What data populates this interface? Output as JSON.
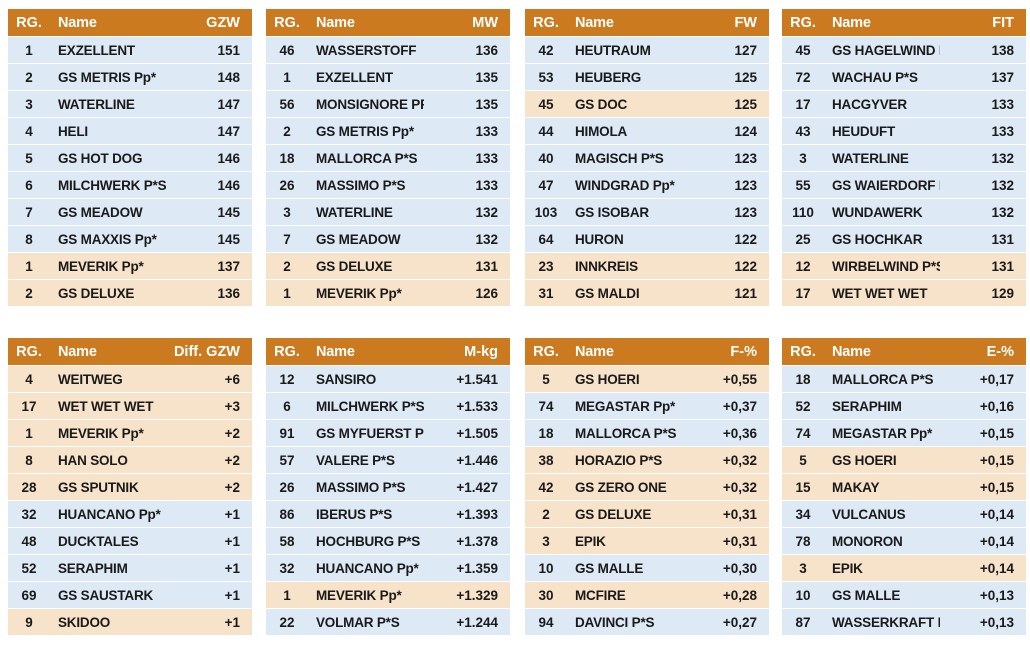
{
  "tables": [
    {
      "headers": {
        "rg": "RG.",
        "name": "Name",
        "value": "GZW"
      },
      "rows": [
        {
          "rg": "1",
          "name": "EXZELLENT",
          "value": "151",
          "tone": "blue"
        },
        {
          "rg": "2",
          "name": "GS METRIS Pp*",
          "value": "148",
          "tone": "blue"
        },
        {
          "rg": "3",
          "name": "WATERLINE",
          "value": "147",
          "tone": "blue"
        },
        {
          "rg": "4",
          "name": "HELI",
          "value": "147",
          "tone": "blue"
        },
        {
          "rg": "5",
          "name": "GS HOT DOG",
          "value": "146",
          "tone": "blue"
        },
        {
          "rg": "6",
          "name": "MILCHWERK P*S",
          "value": "146",
          "tone": "blue"
        },
        {
          "rg": "7",
          "name": "GS MEADOW",
          "value": "145",
          "tone": "blue"
        },
        {
          "rg": "8",
          "name": "GS MAXXIS Pp*",
          "value": "145",
          "tone": "blue"
        },
        {
          "rg": "1",
          "name": "MEVERIK Pp*",
          "value": "137",
          "tone": "tan"
        },
        {
          "rg": "2",
          "name": "GS DELUXE",
          "value": "136",
          "tone": "tan"
        }
      ]
    },
    {
      "headers": {
        "rg": "RG.",
        "name": "Name",
        "value": "MW"
      },
      "rows": [
        {
          "rg": "46",
          "name": "WASSERSTOFF",
          "value": "136",
          "tone": "blue"
        },
        {
          "rg": "1",
          "name": "EXZELLENT",
          "value": "135",
          "tone": "blue"
        },
        {
          "rg": "56",
          "name": "MONSIGNORE PP*",
          "value": "135",
          "tone": "blue"
        },
        {
          "rg": "2",
          "name": "GS METRIS Pp*",
          "value": "133",
          "tone": "blue"
        },
        {
          "rg": "18",
          "name": "MALLORCA P*S",
          "value": "133",
          "tone": "blue"
        },
        {
          "rg": "26",
          "name": "MASSIMO P*S",
          "value": "133",
          "tone": "blue"
        },
        {
          "rg": "3",
          "name": "WATERLINE",
          "value": "132",
          "tone": "blue"
        },
        {
          "rg": "7",
          "name": "GS MEADOW",
          "value": "132",
          "tone": "blue"
        },
        {
          "rg": "2",
          "name": "GS DELUXE",
          "value": "131",
          "tone": "tan"
        },
        {
          "rg": "1",
          "name": "MEVERIK Pp*",
          "value": "126",
          "tone": "tan"
        }
      ]
    },
    {
      "headers": {
        "rg": "RG.",
        "name": "Name",
        "value": "FW"
      },
      "rows": [
        {
          "rg": "42",
          "name": "HEUTRAUM",
          "value": "127",
          "tone": "blue"
        },
        {
          "rg": "53",
          "name": "HEUBERG",
          "value": "125",
          "tone": "blue"
        },
        {
          "rg": "45",
          "name": "GS DOC",
          "value": "125",
          "tone": "tan"
        },
        {
          "rg": "44",
          "name": "HIMOLA",
          "value": "124",
          "tone": "blue"
        },
        {
          "rg": "40",
          "name": "MAGISCH P*S",
          "value": "123",
          "tone": "blue"
        },
        {
          "rg": "47",
          "name": "WINDGRAD Pp*",
          "value": "123",
          "tone": "blue"
        },
        {
          "rg": "103",
          "name": "GS ISOBAR",
          "value": "123",
          "tone": "blue"
        },
        {
          "rg": "64",
          "name": "HURON",
          "value": "122",
          "tone": "blue"
        },
        {
          "rg": "23",
          "name": "INNKREIS",
          "value": "122",
          "tone": "tan"
        },
        {
          "rg": "31",
          "name": "GS MALDI",
          "value": "121",
          "tone": "tan"
        }
      ]
    },
    {
      "headers": {
        "rg": "RG.",
        "name": "Name",
        "value": "FIT"
      },
      "rows": [
        {
          "rg": "45",
          "name": "GS HAGELWIND Pp*",
          "value": "138",
          "tone": "blue"
        },
        {
          "rg": "72",
          "name": "WACHAU P*S",
          "value": "137",
          "tone": "blue"
        },
        {
          "rg": "17",
          "name": "HACGYVER",
          "value": "133",
          "tone": "blue"
        },
        {
          "rg": "43",
          "name": "HEUDUFT",
          "value": "133",
          "tone": "blue"
        },
        {
          "rg": "3",
          "name": "WATERLINE",
          "value": "132",
          "tone": "blue"
        },
        {
          "rg": "55",
          "name": "GS WAIERDORF Pp*",
          "value": "132",
          "tone": "blue"
        },
        {
          "rg": "110",
          "name": "WUNDAWERK",
          "value": "132",
          "tone": "blue"
        },
        {
          "rg": "25",
          "name": "GS HOCHKAR",
          "value": "131",
          "tone": "blue"
        },
        {
          "rg": "12",
          "name": "WIRBELWIND P*S",
          "value": "131",
          "tone": "tan"
        },
        {
          "rg": "17",
          "name": "WET WET WET",
          "value": "129",
          "tone": "tan"
        }
      ]
    },
    {
      "headers": {
        "rg": "RG.",
        "name": "Name",
        "value": "Diff. GZW"
      },
      "rows": [
        {
          "rg": "4",
          "name": "WEITWEG",
          "value": "+6",
          "tone": "tan"
        },
        {
          "rg": "17",
          "name": "WET WET WET",
          "value": "+3",
          "tone": "tan"
        },
        {
          "rg": "1",
          "name": "MEVERIK Pp*",
          "value": "+2",
          "tone": "tan"
        },
        {
          "rg": "8",
          "name": "HAN SOLO",
          "value": "+2",
          "tone": "tan"
        },
        {
          "rg": "28",
          "name": "GS SPUTNIK",
          "value": "+2",
          "tone": "tan"
        },
        {
          "rg": "32",
          "name": "HUANCANO Pp*",
          "value": "+1",
          "tone": "blue"
        },
        {
          "rg": "48",
          "name": "DUCKTALES",
          "value": "+1",
          "tone": "blue"
        },
        {
          "rg": "52",
          "name": "SERAPHIM",
          "value": "+1",
          "tone": "blue"
        },
        {
          "rg": "69",
          "name": "GS SAUSTARK",
          "value": "+1",
          "tone": "blue"
        },
        {
          "rg": "9",
          "name": "SKIDOO",
          "value": "+1",
          "tone": "tan"
        }
      ]
    },
    {
      "headers": {
        "rg": "RG.",
        "name": "Name",
        "value": "M-kg"
      },
      "rows": [
        {
          "rg": "12",
          "name": "SANSIRO",
          "value": "+1.541",
          "tone": "blue"
        },
        {
          "rg": "6",
          "name": "MILCHWERK P*S",
          "value": "+1.533",
          "tone": "blue"
        },
        {
          "rg": "91",
          "name": "GS MYFUERST PP*",
          "value": "+1.505",
          "tone": "blue"
        },
        {
          "rg": "57",
          "name": "VALERE P*S",
          "value": "+1.446",
          "tone": "blue"
        },
        {
          "rg": "26",
          "name": "MASSIMO P*S",
          "value": "+1.427",
          "tone": "blue"
        },
        {
          "rg": "86",
          "name": "IBERUS P*S",
          "value": "+1.393",
          "tone": "blue"
        },
        {
          "rg": "58",
          "name": "HOCHBURG P*S",
          "value": "+1.378",
          "tone": "blue"
        },
        {
          "rg": "32",
          "name": "HUANCANO Pp*",
          "value": "+1.359",
          "tone": "blue"
        },
        {
          "rg": "1",
          "name": "MEVERIK Pp*",
          "value": "+1.329",
          "tone": "tan"
        },
        {
          "rg": "22",
          "name": "VOLMAR P*S",
          "value": "+1.244",
          "tone": "blue"
        }
      ]
    },
    {
      "headers": {
        "rg": "RG.",
        "name": "Name",
        "value": "F-%"
      },
      "rows": [
        {
          "rg": "5",
          "name": "GS HOERI",
          "value": "+0,55",
          "tone": "tan"
        },
        {
          "rg": "74",
          "name": "MEGASTAR Pp*",
          "value": "+0,37",
          "tone": "blue"
        },
        {
          "rg": "18",
          "name": "MALLORCA P*S",
          "value": "+0,36",
          "tone": "blue"
        },
        {
          "rg": "38",
          "name": "HORAZIO P*S",
          "value": "+0,32",
          "tone": "tan"
        },
        {
          "rg": "42",
          "name": "GS ZERO ONE",
          "value": "+0,32",
          "tone": "tan"
        },
        {
          "rg": "2",
          "name": "GS DELUXE",
          "value": "+0,31",
          "tone": "tan"
        },
        {
          "rg": "3",
          "name": "EPIK",
          "value": "+0,31",
          "tone": "tan"
        },
        {
          "rg": "10",
          "name": "GS MALLE",
          "value": "+0,30",
          "tone": "blue"
        },
        {
          "rg": "30",
          "name": "MCFIRE",
          "value": "+0,28",
          "tone": "tan"
        },
        {
          "rg": "94",
          "name": "DAVINCI P*S",
          "value": "+0,27",
          "tone": "blue"
        }
      ]
    },
    {
      "headers": {
        "rg": "RG.",
        "name": "Name",
        "value": "E-%"
      },
      "rows": [
        {
          "rg": "18",
          "name": "MALLORCA P*S",
          "value": "+0,17",
          "tone": "blue"
        },
        {
          "rg": "52",
          "name": "SERAPHIM",
          "value": "+0,16",
          "tone": "blue"
        },
        {
          "rg": "74",
          "name": "MEGASTAR Pp*",
          "value": "+0,15",
          "tone": "blue"
        },
        {
          "rg": "5",
          "name": "GS HOERI",
          "value": "+0,15",
          "tone": "tan"
        },
        {
          "rg": "15",
          "name": "MAKAY",
          "value": "+0,15",
          "tone": "tan"
        },
        {
          "rg": "34",
          "name": "VULCANUS",
          "value": "+0,14",
          "tone": "blue"
        },
        {
          "rg": "78",
          "name": "MONORON",
          "value": "+0,14",
          "tone": "blue"
        },
        {
          "rg": "3",
          "name": "EPIK",
          "value": "+0,14",
          "tone": "tan"
        },
        {
          "rg": "10",
          "name": "GS MALLE",
          "value": "+0,13",
          "tone": "blue"
        },
        {
          "rg": "87",
          "name": "WASSERKRAFT P*S",
          "value": "+0,13",
          "tone": "blue"
        }
      ]
    }
  ],
  "colors": {
    "header": "#cc7a1f",
    "blue_row": "#dde9f4",
    "tan_row": "#f7e2ca"
  }
}
